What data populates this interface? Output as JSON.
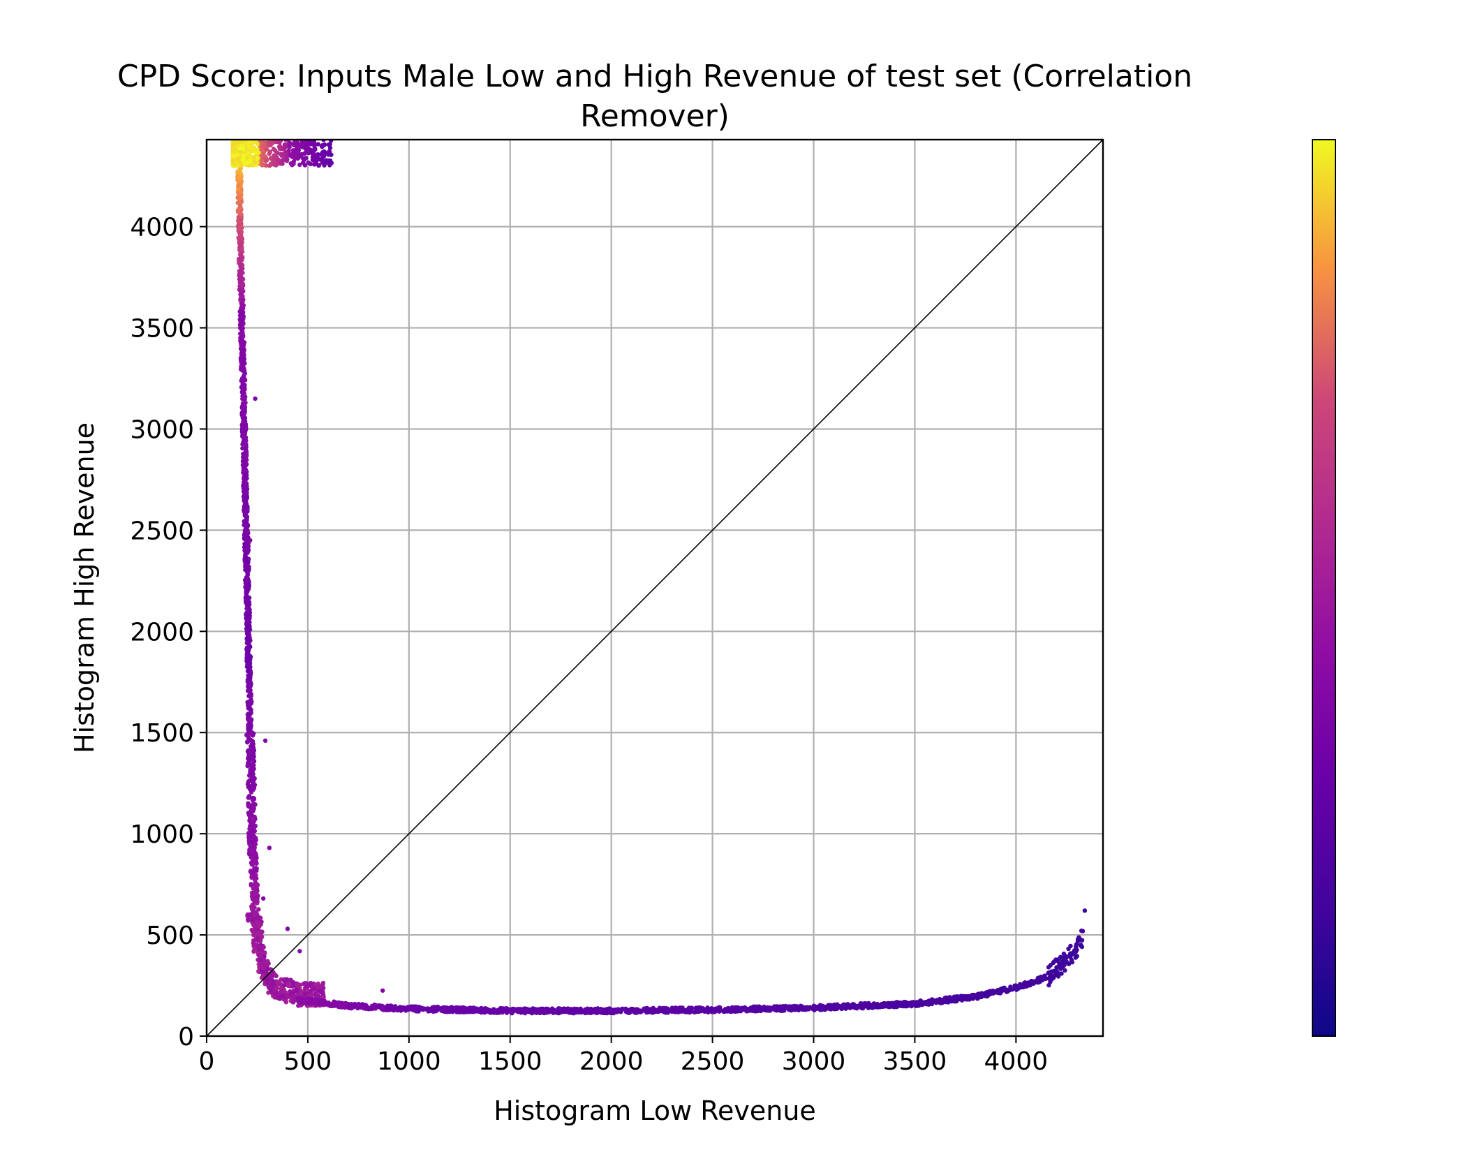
{
  "chart_data": {
    "type": "scatter",
    "title_lines": [
      "CPD Score: Inputs Male Low and High Revenue of test set (Correlation",
      "Remover)"
    ],
    "xlabel": "Histogram Low Revenue",
    "ylabel": "Histogram High Revenue",
    "xlim": [
      0,
      4430
    ],
    "ylim": [
      0,
      4430
    ],
    "xticks": [
      0,
      500,
      1000,
      1500,
      2000,
      2500,
      3000,
      3500,
      4000
    ],
    "yticks": [
      0,
      500,
      1000,
      1500,
      2000,
      2500,
      3000,
      3500,
      4000
    ],
    "grid": true,
    "reference_line": "y = x",
    "colormap": "plasma",
    "colorbar": {
      "ticks": []
    },
    "curve_vertical_branch": {
      "description_points": [
        {
          "x": 160,
          "y": 4430
        },
        {
          "x": 165,
          "y": 4000
        },
        {
          "x": 175,
          "y": 3500
        },
        {
          "x": 185,
          "y": 3000
        },
        {
          "x": 195,
          "y": 2500
        },
        {
          "x": 205,
          "y": 2000
        },
        {
          "x": 215,
          "y": 1500
        },
        {
          "x": 225,
          "y": 1000
        },
        {
          "x": 240,
          "y": 600
        },
        {
          "x": 270,
          "y": 350
        },
        {
          "x": 330,
          "y": 230
        },
        {
          "x": 450,
          "y": 180
        }
      ]
    },
    "curve_horizontal_branch": {
      "description_points": [
        {
          "x": 450,
          "y": 180
        },
        {
          "x": 700,
          "y": 150
        },
        {
          "x": 1000,
          "y": 135
        },
        {
          "x": 1500,
          "y": 125
        },
        {
          "x": 2000,
          "y": 125
        },
        {
          "x": 2500,
          "y": 130
        },
        {
          "x": 3000,
          "y": 140
        },
        {
          "x": 3500,
          "y": 160
        },
        {
          "x": 3800,
          "y": 195
        },
        {
          "x": 4000,
          "y": 240
        },
        {
          "x": 4150,
          "y": 290
        },
        {
          "x": 4250,
          "y": 380
        },
        {
          "x": 4330,
          "y": 480
        }
      ]
    },
    "top_cluster": {
      "x_range": [
        130,
        620
      ],
      "y_range": [
        4300,
        4430
      ]
    },
    "outliers": [
      {
        "x": 240,
        "y": 3150
      },
      {
        "x": 215,
        "y": 2450
      },
      {
        "x": 290,
        "y": 1460
      },
      {
        "x": 310,
        "y": 930
      },
      {
        "x": 280,
        "y": 680
      },
      {
        "x": 400,
        "y": 530
      },
      {
        "x": 460,
        "y": 420
      },
      {
        "x": 4340,
        "y": 620
      },
      {
        "x": 870,
        "y": 225
      }
    ]
  }
}
